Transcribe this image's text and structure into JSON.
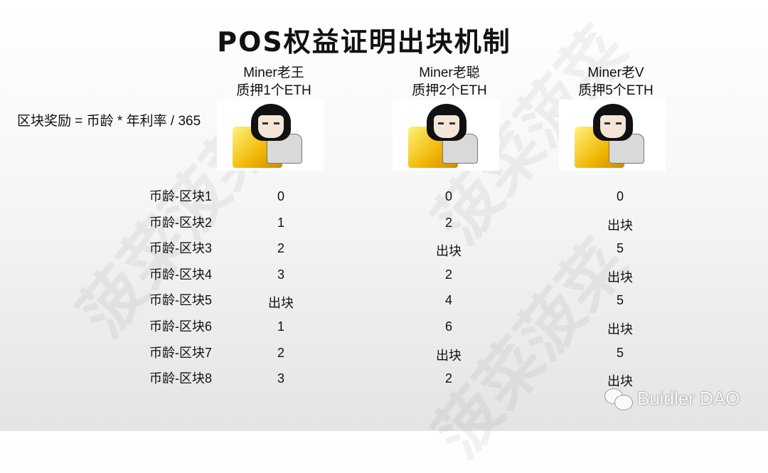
{
  "title": "POS权益证明出块机制",
  "formula": "区块奖励 = 币龄 * 年利率 / 365",
  "miners": [
    {
      "name": "Miner老王",
      "stake": "质押1个ETH"
    },
    {
      "name": "Miner老聪",
      "stake": "质押2个ETH"
    },
    {
      "name": "Miner老V",
      "stake": "质押5个ETH"
    }
  ],
  "rows": [
    {
      "label": "币龄-区块1",
      "values": [
        "0",
        "0",
        "0"
      ]
    },
    {
      "label": "币龄-区块2",
      "values": [
        "1",
        "2",
        "出块"
      ]
    },
    {
      "label": "币龄-区块3",
      "values": [
        "2",
        "出块",
        "5"
      ]
    },
    {
      "label": "币龄-区块4",
      "values": [
        "3",
        "2",
        "出块"
      ]
    },
    {
      "label": "币龄-区块5",
      "values": [
        "出块",
        "4",
        "5"
      ]
    },
    {
      "label": "币龄-区块6",
      "values": [
        "1",
        "6",
        "出块"
      ]
    },
    {
      "label": "币龄-区块7",
      "values": [
        "2",
        "出块",
        "5"
      ]
    },
    {
      "label": "币龄-区块8",
      "values": [
        "3",
        "2",
        "出块"
      ]
    }
  ],
  "watermark": "菠菜菠菜",
  "brand": "Buidler DAO",
  "icons": {
    "miner_image": "miner-meme-icon",
    "brand_logo": "wechat-icon"
  }
}
